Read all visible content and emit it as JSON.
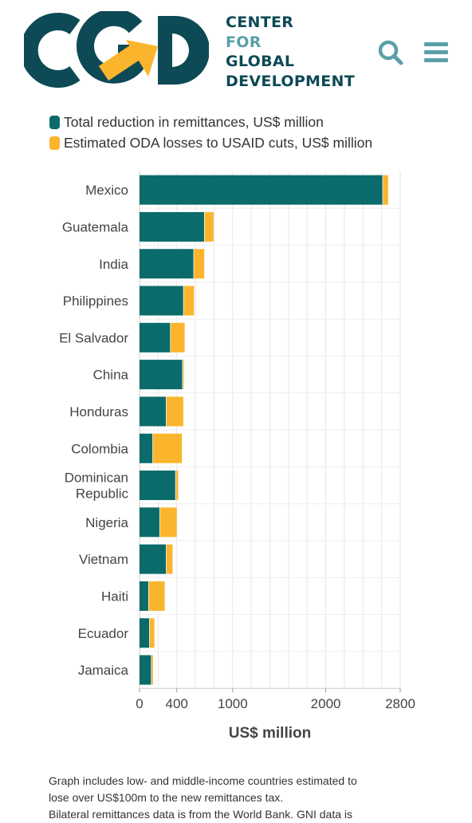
{
  "header": {
    "org_line1": "CENTER",
    "org_line2": "FOR",
    "org_line3": "GLOBAL",
    "org_line4": "DEVELOPMENT",
    "search_icon": "search-icon",
    "menu_icon": "hamburger-menu-icon"
  },
  "colors": {
    "remittance": "#0b6b6b",
    "oda": "#fbb52c",
    "brand_dark": "#0d4a55",
    "brand_light": "#5aa0a7",
    "grid": "#e6e6e6"
  },
  "chart_data": {
    "type": "bar",
    "orientation": "horizontal",
    "stacked": true,
    "categories": [
      "Mexico",
      "Guatemala",
      "India",
      "Philippines",
      "El Salvador",
      "China",
      "Honduras",
      "Colombia",
      "Dominican Republic",
      "Nigeria",
      "Vietnam",
      "Haiti",
      "Ecuador",
      "Jamaica"
    ],
    "series": [
      {
        "name": "Total reduction in remittances, US$ million",
        "values": [
          2615,
          700,
          585,
          475,
          335,
          465,
          290,
          145,
          390,
          220,
          290,
          100,
          110,
          130
        ]
      },
      {
        "name": "Estimated ODA losses to USAID cuts, US$ million",
        "values": [
          55,
          95,
          110,
          110,
          150,
          10,
          180,
          310,
          25,
          180,
          65,
          170,
          50,
          15
        ]
      }
    ],
    "xlabel": "US$ million",
    "ylabel": "",
    "title": "",
    "xticks": [
      0,
      400,
      1000,
      2000,
      2800
    ],
    "xlim": [
      0,
      2800
    ],
    "grid": true,
    "legend": "top"
  },
  "footnote": {
    "line1": "Graph includes low- and middle-income countries estimated to",
    "line2": "lose over US$100m to the new remittances tax.",
    "line3": "Bilateral remittances data is from the World Bank. GNI data is"
  }
}
